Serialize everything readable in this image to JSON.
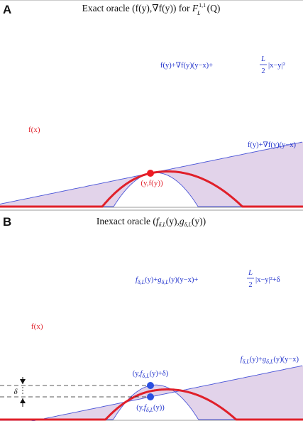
{
  "colors": {
    "fill": "#e2d3ea",
    "outer_curve": "#4b56d8",
    "f_curve": "#e0202a",
    "exact_point": "#ee1c24",
    "inexact_point": "#2a4fe0",
    "text_blue": "#2233cc",
    "text_red": "#e0202a"
  },
  "panelA": {
    "letter": "A",
    "title_prefix": "Exact oracle (f(y),∇f(y)) for ",
    "title_F": "F",
    "title_sup": "1,1",
    "title_sub": "L",
    "title_suffix": "(Q)",
    "upper_label_main": "f(y)+∇f(y)(y−x)+",
    "upper_label_frac_num": "L",
    "upper_label_frac_den": "2",
    "upper_label_tail": "|x−y|²",
    "lower_label": "f(y)+∇f(y)(y−x)",
    "f_label": "f(x)",
    "point_label": "(y,f(y))"
  },
  "panelB": {
    "letter": "B",
    "title_prefix": "Inexact oracle (",
    "title_f": "f",
    "title_sub1": "δ,L",
    "title_mid": "(y),",
    "title_g": "g",
    "title_sub2": "δ,L",
    "title_suffix": "(y))",
    "upper_label_f": "f",
    "upper_label_sub1": "δ,L",
    "upper_label_mid": "(y)+",
    "upper_label_g": "g",
    "upper_label_sub2": "δ,L",
    "upper_label_tail": "(y)(y−x)+",
    "upper_label_frac_num": "L",
    "upper_label_frac_den": "2",
    "upper_label_end": "|x−y|²+δ",
    "lower_label_f": "f",
    "lower_label_sub1": "δ,L",
    "lower_label_mid": "(y)+",
    "lower_label_g": "g",
    "lower_label_sub2": "δ,L",
    "lower_label_end": "(y)(y−x)",
    "f_label": "f(x)",
    "top_point_pre": "(y,",
    "top_point_f": "f",
    "top_point_sub": "δ,L",
    "top_point_post": "(y)+δ)",
    "bottom_point_pre": "(y,",
    "bottom_point_f": "f",
    "bottom_point_sub": "δ,L",
    "bottom_point_post": "(y))",
    "delta_label": "δ"
  }
}
